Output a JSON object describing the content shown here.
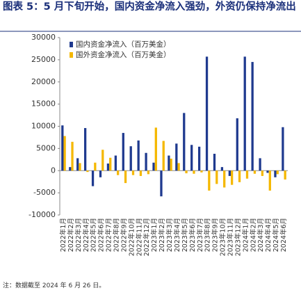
{
  "chart_data": {
    "type": "bar",
    "title": "图表 5：5 月下旬开始，国内资金净流入强劲，外资仍保持净流出",
    "note": "注：数据截至 2024 年 6 月 26 日。",
    "categories": [
      "2022年1月",
      "2022年2月",
      "2022年3月",
      "2022年4月",
      "2022年5月",
      "2022年6月",
      "2022年7月",
      "2022年8月",
      "2022年9月",
      "2022年10月",
      "2022年11月",
      "2022年12月",
      "2023年1月",
      "2023年2月",
      "2023年3月",
      "2023年4月",
      "2023年5月",
      "2023年6月",
      "2023年7月",
      "2023年8月",
      "2023年9月",
      "2023年10月",
      "2023年11月",
      "2023年12月",
      "2024年1月",
      "2024年2月",
      "2024年3月",
      "2024年4月",
      "2024年5月",
      "2024年6月"
    ],
    "series": [
      {
        "name": "国内资金净流入（百万美金）",
        "color": "#1f3a8f",
        "values": [
          10200,
          800,
          2800,
          9600,
          -3500,
          -1500,
          1600,
          3400,
          8500,
          5500,
          6800,
          4000,
          1800,
          -5800,
          3400,
          6100,
          13000,
          5800,
          5400,
          25700,
          3800,
          800,
          -1200,
          11800,
          25700,
          24500,
          2800,
          -500,
          -1500,
          9800
        ]
      },
      {
        "name": "国外资金净流入（百万美金）",
        "color": "#f5b800",
        "values": [
          7800,
          6500,
          1700,
          -300,
          1800,
          4700,
          2900,
          -1000,
          -2800,
          -1000,
          -1200,
          -800,
          9700,
          6700,
          2700,
          1700,
          -600,
          -700,
          -400,
          -4500,
          -3000,
          -3800,
          -3200,
          -2600,
          -1800,
          -700,
          -1200,
          -4500,
          -800,
          -2000
        ]
      }
    ],
    "ylim": [
      -10000,
      30000
    ],
    "yticks": [
      -10000,
      -5000,
      0,
      5000,
      10000,
      15000,
      20000,
      25000,
      30000
    ],
    "legend": "upper left"
  }
}
